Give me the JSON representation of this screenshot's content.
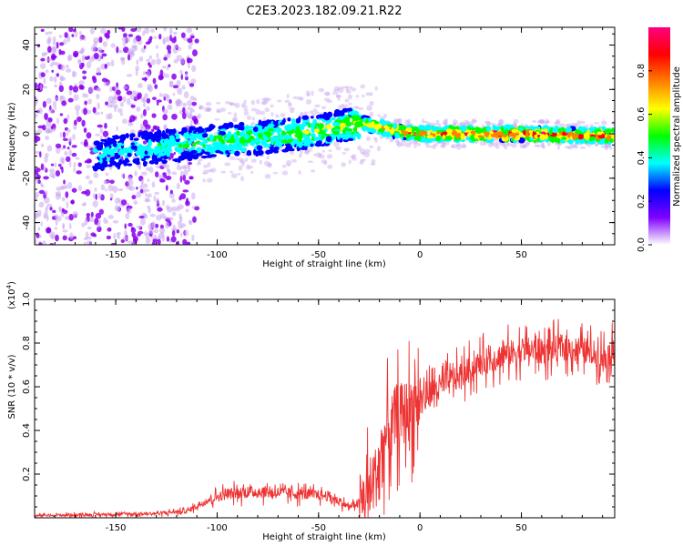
{
  "title": "C2E3.2023.182.09.21.R22",
  "chart_data": [
    {
      "type": "heatmap",
      "xlabel": "Height of straight line (km)",
      "ylabel": "Frequency (Hz)",
      "xlim": [
        -190,
        96
      ],
      "ylim": [
        -50,
        48
      ],
      "xticks": [
        -150,
        -100,
        -50,
        0,
        50
      ],
      "yticks": [
        -40,
        -20,
        0,
        20,
        40
      ],
      "colorbar": {
        "label": "Normalized spectral amplitude",
        "range": [
          0,
          1
        ],
        "ticks": [
          "0.0",
          "0.2",
          "0.4",
          "0.6",
          "0.8"
        ],
        "tick_values": [
          0.0,
          0.2,
          0.4,
          0.6,
          0.8
        ],
        "colors": [
          "#ffffff",
          "#7f00ff",
          "#0000ff",
          "#00ffff",
          "#00ff00",
          "#ffff00",
          "#ff8000",
          "#ff0000",
          "#ff0080"
        ]
      },
      "ridge": {
        "description": "frequency centre of the spectral trace",
        "x": [
          -190,
          -150,
          -120,
          -100,
          -80,
          -60,
          -40,
          -30,
          -20,
          -10,
          0,
          50,
          96
        ],
        "y": [
          -12,
          -8,
          -5,
          -3,
          -2,
          0,
          3,
          5,
          3,
          1,
          0,
          0,
          -1
        ]
      },
      "amplitude_profile": {
        "x": [
          -190,
          -150,
          -110,
          -90,
          -60,
          -40,
          -30,
          -15,
          0,
          50,
          96
        ],
        "value": [
          0.25,
          0.3,
          0.4,
          0.45,
          0.5,
          0.55,
          0.65,
          0.75,
          0.9,
          0.95,
          0.9
        ]
      }
    },
    {
      "type": "line",
      "xlabel": "Height of straight line (km)",
      "ylabel": "SNR (10 * v/v)",
      "y_multiplier": "(x10",
      "y_multiplier_exp": "4",
      "y_multiplier_close": ")",
      "xlim": [
        -190,
        96
      ],
      "ylim": [
        0,
        1.0
      ],
      "xticks": [
        -150,
        -100,
        -50,
        0,
        50
      ],
      "yticks": [
        0.2,
        0.4,
        0.6,
        0.8,
        1.0
      ],
      "color": "#ee3333",
      "series": [
        {
          "name": "SNR",
          "x": [
            -190,
            -160,
            -130,
            -115,
            -105,
            -95,
            -80,
            -60,
            -45,
            -35,
            -28,
            -22,
            -18,
            -12,
            -5,
            0,
            10,
            20,
            30,
            40,
            50,
            60,
            70,
            80,
            90,
            96
          ],
          "y": [
            0.01,
            0.015,
            0.02,
            0.03,
            0.08,
            0.11,
            0.12,
            0.11,
            0.1,
            0.05,
            0.08,
            0.18,
            0.35,
            0.45,
            0.5,
            0.55,
            0.6,
            0.65,
            0.71,
            0.74,
            0.77,
            0.76,
            0.78,
            0.77,
            0.74,
            0.76
          ]
        }
      ]
    }
  ],
  "colors": {
    "trace": "#ee3333",
    "axis": "#000000"
  }
}
